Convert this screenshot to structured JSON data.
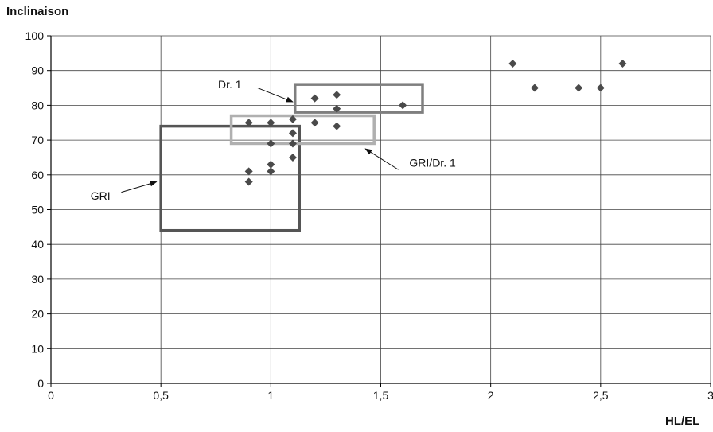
{
  "chart_data": {
    "type": "scatter",
    "title": "",
    "xlabel": "HL/EL",
    "ylabel": "Inclinaison",
    "xlim": [
      0,
      3
    ],
    "ylim": [
      0,
      100
    ],
    "x_ticks": [
      "0",
      "0,5",
      "1",
      "1,5",
      "2",
      "2,5",
      "3"
    ],
    "y_ticks": [
      "0",
      "10",
      "20",
      "30",
      "40",
      "50",
      "60",
      "70",
      "80",
      "90",
      "100"
    ],
    "grid": true,
    "marker_color": "#4a4a4a",
    "series": [
      {
        "points": [
          {
            "x": 0.9,
            "y": 75
          },
          {
            "x": 0.9,
            "y": 61
          },
          {
            "x": 0.9,
            "y": 58
          },
          {
            "x": 1.0,
            "y": 75
          },
          {
            "x": 1.0,
            "y": 69
          },
          {
            "x": 1.0,
            "y": 63
          },
          {
            "x": 1.0,
            "y": 61
          },
          {
            "x": 1.1,
            "y": 76
          },
          {
            "x": 1.1,
            "y": 72
          },
          {
            "x": 1.1,
            "y": 69
          },
          {
            "x": 1.1,
            "y": 65
          },
          {
            "x": 1.2,
            "y": 82
          },
          {
            "x": 1.2,
            "y": 75
          },
          {
            "x": 1.3,
            "y": 83
          },
          {
            "x": 1.3,
            "y": 79
          },
          {
            "x": 1.3,
            "y": 74
          },
          {
            "x": 1.6,
            "y": 80
          },
          {
            "x": 2.1,
            "y": 92
          },
          {
            "x": 2.2,
            "y": 85
          },
          {
            "x": 2.4,
            "y": 85
          },
          {
            "x": 2.5,
            "y": 85
          },
          {
            "x": 2.6,
            "y": 92
          }
        ]
      }
    ],
    "annotations": [
      {
        "label": "GRI",
        "rect": {
          "x0": 0.5,
          "x1": 1.13,
          "y0": 44,
          "y1": 74
        },
        "color": "#555555",
        "text_at": {
          "x": 0.18,
          "y": 54
        },
        "arrow_from": {
          "x": 0.32,
          "y": 55
        },
        "arrow_to": {
          "x": 0.48,
          "y": 58
        }
      },
      {
        "label": "GRI/Dr. 1",
        "rect": {
          "x0": 0.82,
          "x1": 1.47,
          "y0": 69,
          "y1": 77
        },
        "color": "#b0b0b0",
        "text_at": {
          "x": 1.63,
          "y": 63.5
        },
        "arrow_from": {
          "x": 1.58,
          "y": 61.5
        },
        "arrow_to": {
          "x": 1.43,
          "y": 67.5
        }
      },
      {
        "label": "Dr. 1",
        "rect": {
          "x0": 1.11,
          "x1": 1.69,
          "y0": 78,
          "y1": 86
        },
        "color": "#7f7f7f",
        "text_at": {
          "x": 0.76,
          "y": 86
        },
        "arrow_from": {
          "x": 0.94,
          "y": 85
        },
        "arrow_to": {
          "x": 1.1,
          "y": 81
        }
      }
    ]
  }
}
